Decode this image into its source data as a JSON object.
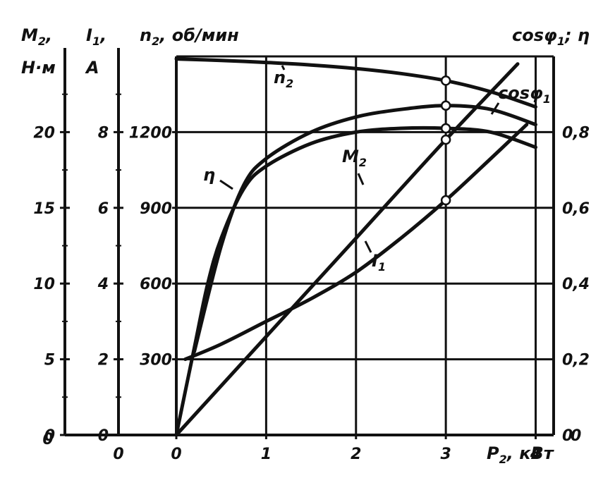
{
  "chart_data": {
    "type": "line",
    "x_axis": {
      "label": "P",
      "label_sub": "2",
      "unit": ", кВт",
      "range": [
        0,
        4.2
      ],
      "ticks": [
        0,
        1,
        2,
        3,
        4
      ],
      "tick_labels": [
        "0",
        "1",
        "2",
        "3",
        "4"
      ]
    },
    "y_axes": {
      "M2": {
        "label": "M",
        "label_sub": "2",
        "label_suffix": ",",
        "unit": "Н·м",
        "range": [
          0,
          25
        ],
        "ticks": [
          0,
          5,
          10,
          15,
          20
        ],
        "tick_labels": [
          "0",
          "5",
          "10",
          "15",
          "20"
        ]
      },
      "I1": {
        "label": "I",
        "label_sub": "1",
        "label_suffix": ",",
        "unit": "A",
        "range": [
          0,
          10
        ],
        "ticks": [
          0,
          2,
          4,
          6,
          8
        ],
        "tick_labels": [
          "0",
          "2",
          "4",
          "6",
          "8"
        ]
      },
      "n2": {
        "label": "n",
        "label_sub": "2",
        "unit": ", об/мин",
        "range": [
          0,
          1500
        ],
        "ticks": [
          300,
          600,
          900,
          1200
        ],
        "tick_labels": [
          "300",
          "600",
          "900",
          "1200"
        ]
      },
      "cos_eta": {
        "label": "cosφ",
        "label_sub": "1",
        "label_suffix": "; η",
        "range": [
          0,
          1.0
        ],
        "ticks": [
          0,
          0.2,
          0.4,
          0.6,
          0.8
        ],
        "tick_labels": [
          "0",
          "0,2",
          "0,4",
          "0,6",
          "0,8"
        ]
      }
    },
    "grid": true,
    "series": [
      {
        "name": "n",
        "name_sub": "2",
        "axis": "n2",
        "x": [
          0,
          0.5,
          1.0,
          1.5,
          2.0,
          2.5,
          3.0,
          3.5,
          4.0
        ],
        "values": [
          1490,
          1484,
          1476,
          1466,
          1452,
          1432,
          1404,
          1360,
          1300
        ]
      },
      {
        "name": "cosφ",
        "name_sub": "1",
        "axis": "cos_eta",
        "x": [
          0.2,
          0.5,
          0.75,
          1.0,
          1.5,
          2.0,
          2.5,
          3.0,
          3.5,
          4.0
        ],
        "values": [
          0.22,
          0.5,
          0.66,
          0.73,
          0.8,
          0.84,
          0.86,
          0.87,
          0.86,
          0.82
        ]
      },
      {
        "name": "η",
        "name_sub": "",
        "axis": "cos_eta",
        "x": [
          0,
          0.2,
          0.35,
          0.5,
          0.75,
          1.0,
          1.5,
          2.0,
          2.5,
          3.0,
          3.5,
          4.0
        ],
        "values": [
          0.0,
          0.23,
          0.4,
          0.52,
          0.65,
          0.71,
          0.77,
          0.8,
          0.81,
          0.81,
          0.8,
          0.76
        ]
      },
      {
        "name": "M",
        "name_sub": "2",
        "axis": "M2",
        "x": [
          0,
          1.0,
          2.0,
          3.0,
          3.8
        ],
        "values": [
          0,
          6.5,
          13.0,
          19.5,
          24.5
        ]
      },
      {
        "name": "I",
        "name_sub": "1",
        "axis": "I1",
        "x": [
          0.1,
          0.5,
          1.0,
          1.5,
          2.0,
          2.5,
          3.0,
          3.5,
          3.9
        ],
        "values": [
          2.0,
          2.4,
          3.0,
          3.6,
          4.3,
          5.2,
          6.2,
          7.3,
          8.2
        ]
      }
    ],
    "markers_at_x": 3.0,
    "marker_values": {
      "n2": 1404,
      "cos": 0.87,
      "eta": 0.81,
      "M2": 19.5,
      "I1": 6.2
    }
  }
}
